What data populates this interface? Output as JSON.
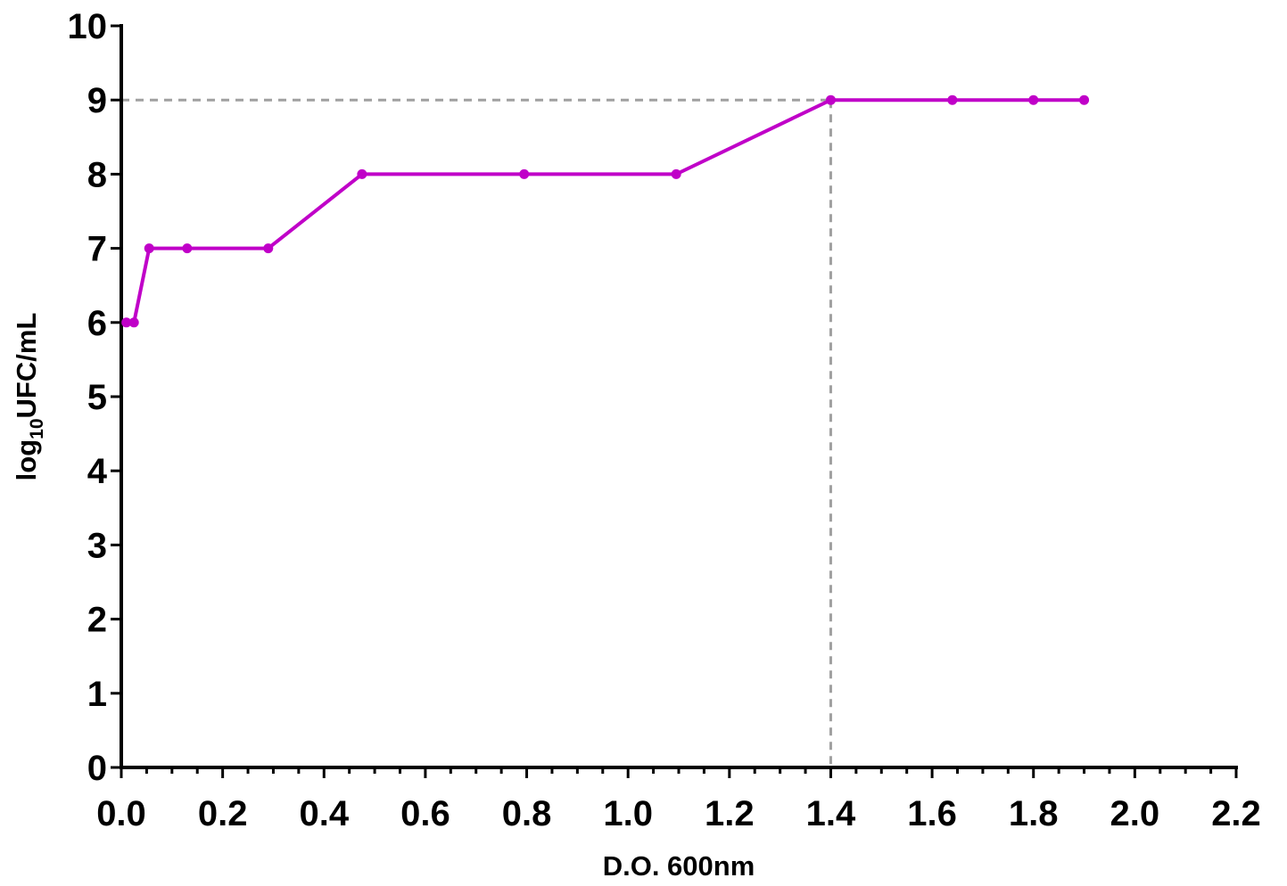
{
  "chart_data": {
    "type": "line",
    "title": "",
    "xlabel": "D.O. 600nm",
    "ylabel": {
      "prefix": "log",
      "subscript": "10",
      "suffix": "UFC/mL"
    },
    "xlim": [
      0,
      2.2
    ],
    "ylim": [
      0,
      10
    ],
    "x_ticks": [
      "0.0",
      "0.2",
      "0.4",
      "0.6",
      "0.8",
      "1.0",
      "1.2",
      "1.4",
      "1.6",
      "1.8",
      "2.0",
      "2.2"
    ],
    "y_ticks": [
      "0",
      "1",
      "2",
      "3",
      "4",
      "5",
      "6",
      "7",
      "8",
      "9",
      "10"
    ],
    "x_minor_step": 0.05,
    "grid": false,
    "series": [
      {
        "color": "#c000c8",
        "x": [
          0.01,
          0.025,
          0.055,
          0.13,
          0.29,
          0.475,
          0.795,
          1.095,
          1.4,
          1.64,
          1.8,
          1.9
        ],
        "y": [
          6,
          6,
          7,
          7,
          7,
          8,
          8,
          8,
          9,
          9,
          9,
          9
        ]
      }
    ],
    "reference_lines": {
      "color": "#a0a0a0",
      "horizontal_y": 9,
      "vertical_x": 1.4
    }
  }
}
